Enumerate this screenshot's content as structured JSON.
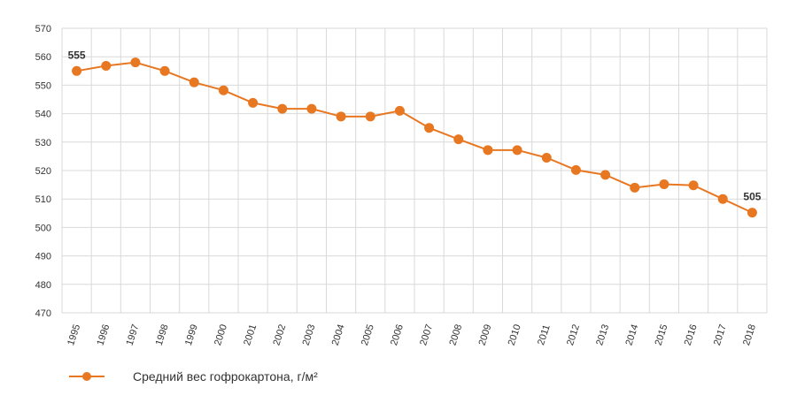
{
  "chart_data": {
    "type": "line",
    "x": [
      "1995",
      "1996",
      "1997",
      "1998",
      "1999",
      "2000",
      "2001",
      "2002",
      "2003",
      "2004",
      "2005",
      "2006",
      "2007",
      "2008",
      "2009",
      "2010",
      "2011",
      "2012",
      "2013",
      "2014",
      "2015",
      "2016",
      "2017",
      "2018"
    ],
    "series": [
      {
        "name": "Средний вес гофрокартона, г/м²",
        "color": "#e87722",
        "values": [
          555,
          556.8,
          558,
          555,
          551,
          548.2,
          543.8,
          541.7,
          541.7,
          539,
          539,
          541,
          535,
          531,
          527.2,
          527.2,
          524.5,
          520.2,
          518.5,
          514,
          515.2,
          514.8,
          510,
          505.2
        ]
      }
    ],
    "ylim": [
      470,
      570
    ],
    "yticks": [
      "470",
      "480",
      "490",
      "500",
      "510",
      "520",
      "530",
      "540",
      "550",
      "560",
      "570"
    ],
    "data_labels": [
      {
        "index": 0,
        "text": "555"
      },
      {
        "index": 23,
        "text": "505"
      }
    ],
    "grid": true,
    "legend": "bottom-left",
    "title": "",
    "xlabel": "",
    "ylabel": ""
  },
  "legend": {
    "label": "Средний вес гофрокартона, г/м²"
  }
}
